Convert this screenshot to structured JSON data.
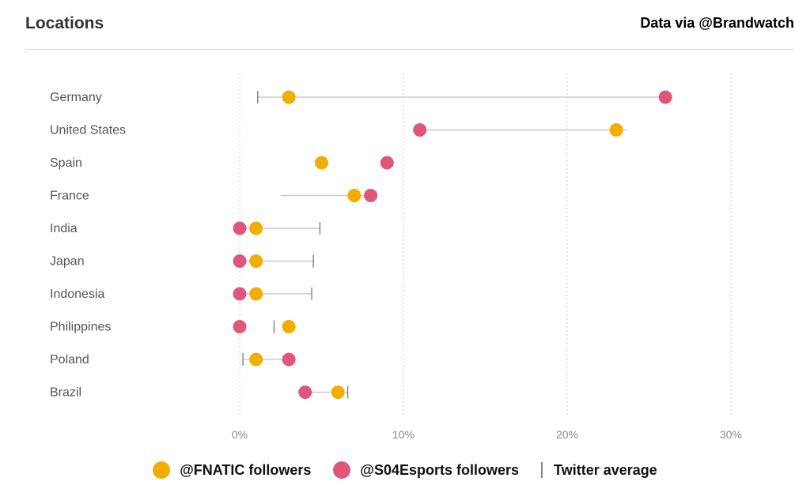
{
  "header": {
    "title": "Locations",
    "source": "Data via @Brandwatch"
  },
  "colors": {
    "fnatic": "#F2AD00",
    "s04": "#E0567A",
    "avg": "#888888",
    "line": "#cccccc"
  },
  "legend": {
    "fnatic": "@FNATIC followers",
    "s04": "@S04Esports followers",
    "avg": "Twitter average"
  },
  "chart_data": {
    "type": "dot",
    "title": "Locations",
    "xlim": [
      0,
      30
    ],
    "xticks": [
      0,
      10,
      20,
      30
    ],
    "xtick_labels": [
      "0%",
      "10%",
      "20%",
      "30%"
    ],
    "grid": true,
    "legend_position": "bottom",
    "categories": [
      "Germany",
      "United States",
      "Spain",
      "France",
      "India",
      "Japan",
      "Indonesia",
      "Philippines",
      "Poland",
      "Brazil"
    ],
    "series": [
      {
        "name": "@FNATIC followers",
        "values": [
          3,
          23,
          5,
          7,
          1,
          1,
          1,
          3,
          1,
          6
        ]
      },
      {
        "name": "@S04Esports followers",
        "values": [
          26,
          11,
          9,
          8,
          0,
          0,
          0,
          0,
          3,
          4
        ]
      },
      {
        "name": "Twitter average",
        "values": [
          1.1,
          23.7,
          null,
          2.5,
          4.9,
          4.5,
          4.4,
          2.1,
          0.2,
          6.6
        ]
      }
    ],
    "avg_marker_shown": [
      true,
      false,
      false,
      false,
      true,
      true,
      true,
      true,
      true,
      true
    ],
    "connector_shown": [
      true,
      true,
      false,
      true,
      true,
      true,
      true,
      false,
      true,
      true
    ]
  }
}
